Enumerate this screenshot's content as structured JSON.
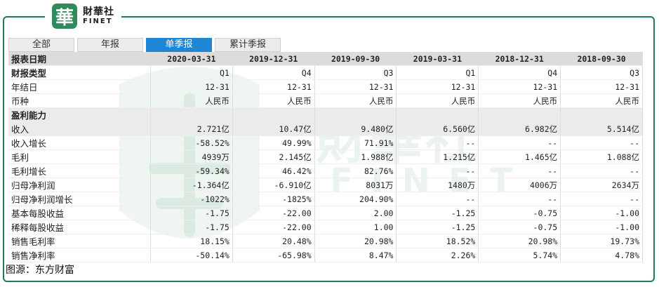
{
  "logo": {
    "mark": "華",
    "name_cn": "財華社",
    "name_en": "FINET"
  },
  "watermark": {
    "text_cn": "財華社",
    "text_en": "FINET"
  },
  "tabs": [
    {
      "label": "全部",
      "active": false
    },
    {
      "label": "年报",
      "active": false
    },
    {
      "label": "单季报",
      "active": true
    },
    {
      "label": "累计季报",
      "active": false
    }
  ],
  "table": {
    "header_label": "报表日期",
    "periods": [
      "2020-03-31",
      "2019-12-31",
      "2019-09-30",
      "2019-03-31",
      "2018-12-31",
      "2018-09-30"
    ],
    "rows": [
      {
        "label": "财报类型",
        "style": "bold",
        "values": [
          "Q1",
          "Q4",
          "Q3",
          "Q1",
          "Q4",
          "Q3"
        ]
      },
      {
        "label": "年结日",
        "style": "normal",
        "values": [
          "12-31",
          "12-31",
          "12-31",
          "12-31",
          "12-31",
          "12-31"
        ]
      },
      {
        "label": "币种",
        "style": "normal",
        "values": [
          "人民币",
          "人民币",
          "人民币",
          "人民币",
          "人民币",
          "人民币"
        ]
      },
      {
        "label": "盈利能力",
        "style": "section",
        "values": [
          "",
          "",
          "",
          "",
          "",
          ""
        ]
      },
      {
        "label": "收入",
        "style": "shade",
        "values": [
          "2.721亿",
          "10.47亿",
          "9.480亿",
          "6.560亿",
          "6.982亿",
          "5.514亿"
        ]
      },
      {
        "label": "收入增长",
        "style": "normal",
        "values": [
          "-58.52%",
          "49.99%",
          "71.91%",
          "--",
          "--",
          "--"
        ]
      },
      {
        "label": "毛利",
        "style": "normal",
        "values": [
          "4939万",
          "2.145亿",
          "1.988亿",
          "1.215亿",
          "1.465亿",
          "1.088亿"
        ]
      },
      {
        "label": "毛利增长",
        "style": "normal",
        "values": [
          "-59.34%",
          "46.42%",
          "82.76%",
          "--",
          "--",
          "--"
        ]
      },
      {
        "label": "归母净利润",
        "style": "normal",
        "values": [
          "-1.364亿",
          "-6.910亿",
          "8031万",
          "1480万",
          "4006万",
          "2634万"
        ]
      },
      {
        "label": "归母净利润增长",
        "style": "normal",
        "values": [
          "-1022%",
          "-1825%",
          "204.90%",
          "--",
          "--",
          "--"
        ]
      },
      {
        "label": "基本每股收益",
        "style": "normal",
        "values": [
          "-1.75",
          "-22.00",
          "2.00",
          "-1.25",
          "-0.75",
          "-1.00"
        ]
      },
      {
        "label": "稀释每股收益",
        "style": "normal",
        "values": [
          "-1.75",
          "-22.00",
          "1.00",
          "-1.25",
          "-0.75",
          "-1.00"
        ]
      },
      {
        "label": "销售毛利率",
        "style": "normal",
        "values": [
          "18.15%",
          "20.48%",
          "20.98%",
          "18.52%",
          "20.98%",
          "19.73%"
        ]
      },
      {
        "label": "销售净利率",
        "style": "normal",
        "values": [
          "-50.14%",
          "-65.98%",
          "8.47%",
          "2.26%",
          "5.74%",
          "4.78%"
        ]
      }
    ]
  },
  "source": "图源：东方财富",
  "colors": {
    "frame": "#1c7a5e",
    "brand_green": "#2e8b5c",
    "tab_active": "#1f86d6",
    "header_bg": "#dcdcdc"
  }
}
